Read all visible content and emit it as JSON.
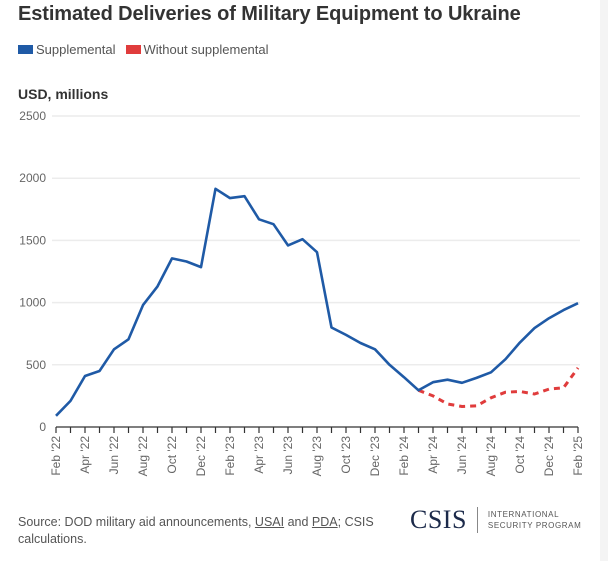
{
  "header": {
    "title": "Estimated Deliveries of Military Equipment to Ukraine"
  },
  "legend": [
    {
      "label": "Supplemental",
      "color": "#1f5aa6"
    },
    {
      "label": "Without supplemental",
      "color": "#e03c3c"
    }
  ],
  "footer": {
    "source_prefix": "Source: DOD military aid announcements, ",
    "link1": "USAI",
    "mid": " and ",
    "link2": "PDA",
    "suffix": "; CSIS calculations.",
    "logo_mark": "CSIS",
    "logo_line1": "INTERNATIONAL",
    "logo_line2": "SECURITY PROGRAM"
  },
  "chart_data": {
    "type": "line",
    "title": "Estimated Deliveries of Military Equipment to Ukraine",
    "xlabel": "",
    "ylabel": "USD, millions",
    "ylim": [
      0,
      2500
    ],
    "yticks": [
      0,
      500,
      1000,
      1500,
      2000,
      2500
    ],
    "grid": true,
    "legend_position": "top-left",
    "x": [
      "Feb '22",
      "Mar '22",
      "Apr '22",
      "May '22",
      "Jun '22",
      "Jul '22",
      "Aug '22",
      "Sep '22",
      "Oct '22",
      "Nov '22",
      "Dec '22",
      "Jan '23",
      "Feb '23",
      "Mar '23",
      "Apr '23",
      "May '23",
      "Jun '23",
      "Jul '23",
      "Aug '23",
      "Sep '23",
      "Oct '23",
      "Nov '23",
      "Dec '23",
      "Jan '24",
      "Feb '24",
      "Mar '24",
      "Apr '24",
      "May '24",
      "Jun '24",
      "Jul '24",
      "Aug '24",
      "Sep '24",
      "Oct '24",
      "Nov '24",
      "Dec '24",
      "Jan '25",
      "Feb '25"
    ],
    "xtick_labels": [
      "Feb '22",
      "Apr '22",
      "Jun '22",
      "Aug '22",
      "Oct '22",
      "Dec '22",
      "Feb '23",
      "Apr '23",
      "Jun '23",
      "Aug '23",
      "Oct '23",
      "Dec '23",
      "Feb '24",
      "Apr '24",
      "Jun '24",
      "Aug '24",
      "Oct '24",
      "Dec '24",
      "Feb '25"
    ],
    "series": [
      {
        "name": "Supplemental",
        "color": "#1f5aa6",
        "style": "solid",
        "values": [
          90,
          210,
          410,
          450,
          625,
          705,
          980,
          1130,
          1355,
          1330,
          1285,
          1915,
          1840,
          1855,
          1670,
          1630,
          1460,
          1510,
          1405,
          800,
          740,
          675,
          625,
          500,
          400,
          295,
          360,
          380,
          355,
          395,
          440,
          545,
          680,
          795,
          875,
          940,
          995
        ]
      },
      {
        "name": "Without supplemental",
        "color": "#e03c3c",
        "style": "dashed",
        "values": [
          null,
          null,
          null,
          null,
          null,
          null,
          null,
          null,
          null,
          null,
          null,
          null,
          null,
          null,
          null,
          null,
          null,
          null,
          null,
          null,
          null,
          null,
          null,
          null,
          null,
          295,
          250,
          185,
          165,
          170,
          235,
          280,
          285,
          265,
          305,
          315,
          475
        ]
      }
    ]
  }
}
